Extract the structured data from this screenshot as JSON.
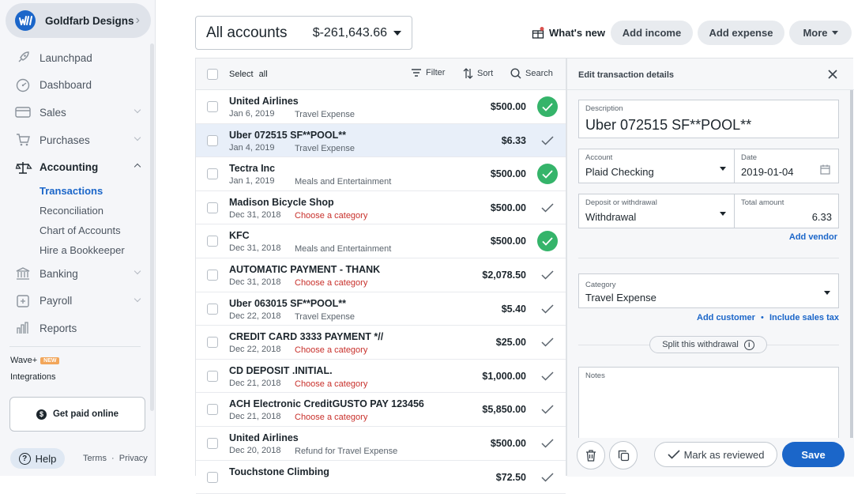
{
  "business": {
    "name": "Goldfarb Designs"
  },
  "sidebar": {
    "items": [
      {
        "label": "Launchpad",
        "icon": "rocket-icon"
      },
      {
        "label": "Dashboard",
        "icon": "dashboard-icon"
      },
      {
        "label": "Sales",
        "icon": "sales-icon"
      },
      {
        "label": "Purchases",
        "icon": "cart-icon"
      },
      {
        "label": "Accounting",
        "icon": "scale-icon"
      },
      {
        "label": "Banking",
        "icon": "bank-icon"
      },
      {
        "label": "Payroll",
        "icon": "payroll-icon"
      },
      {
        "label": "Reports",
        "icon": "reports-icon"
      }
    ],
    "accounting_sub": [
      {
        "label": "Transactions"
      },
      {
        "label": "Reconciliation"
      },
      {
        "label": "Chart of Accounts"
      },
      {
        "label": "Hire a Bookkeeper"
      }
    ],
    "wave_plus": "Wave+",
    "new_badge": "NEW",
    "integrations": "Integrations",
    "get_paid": "Get paid online",
    "help": "Help",
    "terms": "Terms",
    "privacy": "Privacy",
    "link_sep": "·"
  },
  "topbar": {
    "account_name": "All accounts",
    "account_balance": "$-261,643.66",
    "whats_new": "What's new",
    "add_income": "Add income",
    "add_expense": "Add expense",
    "more": "More"
  },
  "list_header": {
    "select": "Select",
    "all": "all",
    "filter": "Filter",
    "sort": "Sort",
    "search": "Search"
  },
  "transactions": [
    {
      "name": "United Airlines",
      "date": "Jan 6, 2019",
      "category": "Travel Expense",
      "amount": "$500.00",
      "status": "reviewed",
      "choose": false
    },
    {
      "name": "Uber 072515 SF**POOL**",
      "date": "Jan 4, 2019",
      "category": "Travel Expense",
      "amount": "$6.33",
      "status": "unreviewed",
      "choose": false
    },
    {
      "name": "Tectra Inc",
      "date": "Jan 1, 2019",
      "category": "Meals and Entertainment",
      "amount": "$500.00",
      "status": "reviewed",
      "choose": false
    },
    {
      "name": "Madison Bicycle Shop",
      "date": "Dec 31, 2018",
      "category": "Choose a category",
      "amount": "$500.00",
      "status": "unreviewed",
      "choose": true
    },
    {
      "name": "KFC",
      "date": "Dec 31, 2018",
      "category": "Meals and Entertainment",
      "amount": "$500.00",
      "status": "reviewed",
      "choose": false
    },
    {
      "name": "AUTOMATIC PAYMENT - THANK",
      "date": "Dec 31, 2018",
      "category": "Choose a category",
      "amount": "$2,078.50",
      "status": "unreviewed",
      "choose": true
    },
    {
      "name": "Uber 063015 SF**POOL**",
      "date": "Dec 22, 2018",
      "category": "Travel Expense",
      "amount": "$5.40",
      "status": "unreviewed",
      "choose": false
    },
    {
      "name": "CREDIT CARD 3333 PAYMENT *//",
      "date": "Dec 22, 2018",
      "category": "Choose a category",
      "amount": "$25.00",
      "status": "unreviewed",
      "choose": true
    },
    {
      "name": "CD DEPOSIT .INITIAL.",
      "date": "Dec 21, 2018",
      "category": "Choose a category",
      "amount": "$1,000.00",
      "status": "unreviewed",
      "choose": true
    },
    {
      "name": "ACH Electronic CreditGUSTO PAY 123456",
      "date": "Dec 21, 2018",
      "category": "Choose a category",
      "amount": "$5,850.00",
      "status": "unreviewed",
      "choose": true
    },
    {
      "name": "United Airlines",
      "date": "Dec 20, 2018",
      "category": "Refund for Travel Expense",
      "amount": "$500.00",
      "status": "unreviewed",
      "choose": false
    },
    {
      "name": "Touchstone Climbing",
      "date": "",
      "category": "",
      "amount": "$72.50",
      "status": "unreviewed",
      "choose": false
    }
  ],
  "details": {
    "title": "Edit transaction details",
    "description_label": "Description",
    "description_value": "Uber 072515 SF**POOL**",
    "account_label": "Account",
    "account_value": "Plaid Checking",
    "date_label": "Date",
    "date_value": "2019-01-04",
    "deposit_label": "Deposit or withdrawal",
    "deposit_value": "Withdrawal",
    "total_label": "Total amount",
    "total_value": "6.33",
    "add_vendor": "Add vendor",
    "category_label": "Category",
    "category_value": "Travel Expense",
    "add_customer": "Add customer",
    "link_dot": "•",
    "include_sales_tax": "Include sales tax",
    "split": "Split this withdrawal",
    "notes_label": "Notes",
    "mark_reviewed": "Mark as reviewed",
    "save": "Save"
  },
  "colors": {
    "accent": "#1b66c9",
    "reviewed": "#35b46a",
    "warning": "#c8302b"
  }
}
